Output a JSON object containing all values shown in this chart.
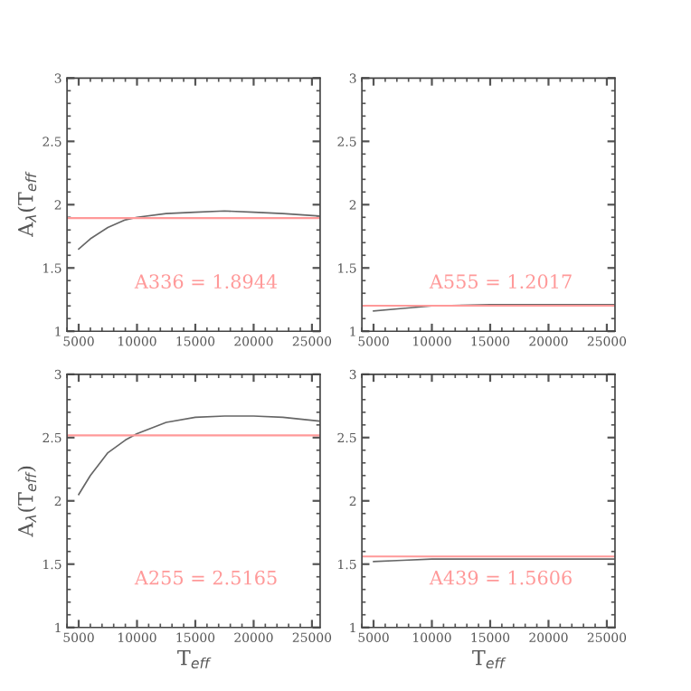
{
  "chart_data": [
    {
      "type": "line",
      "ylabel": "A$_{λ}$(T$_{eff}$",
      "xlim": [
        4000,
        25700
      ],
      "ylim": [
        1,
        3
      ],
      "xticks": [
        5000,
        10000,
        15000,
        20000,
        25000
      ],
      "yticks": [
        1,
        1.5,
        2,
        2.5,
        3
      ],
      "series": [
        {
          "color": "#666666",
          "x": [
            5000,
            6000,
            7500,
            9000,
            10000,
            12500,
            15000,
            17500,
            20000,
            22500,
            25600
          ],
          "values": [
            1.65,
            1.73,
            1.82,
            1.88,
            1.9,
            1.93,
            1.94,
            1.95,
            1.94,
            1.93,
            1.91
          ]
        }
      ],
      "ref_lines": [
        {
          "axis": "y",
          "value": 1.8944,
          "label": "A336 = 1.8944",
          "color": "#ff9999"
        }
      ]
    },
    {
      "type": "line",
      "xlim": [
        4000,
        25700
      ],
      "ylim": [
        1,
        3
      ],
      "xticks": [
        5000,
        10000,
        15000,
        20000,
        25000
      ],
      "yticks": [
        1,
        1.5,
        2,
        2.5,
        3
      ],
      "series": [
        {
          "color": "#666666",
          "x": [
            5000,
            7500,
            10000,
            15000,
            20000,
            25600
          ],
          "values": [
            1.16,
            1.18,
            1.2,
            1.21,
            1.21,
            1.21
          ]
        }
      ],
      "ref_lines": [
        {
          "axis": "y",
          "value": 1.2017,
          "label": "A555 = 1.2017",
          "color": "#ff9999"
        }
      ]
    },
    {
      "type": "line",
      "xlabel": "T$_{eff}$",
      "ylabel": "A$_{λ}$(T$_{eff}$)",
      "xlim": [
        4000,
        25700
      ],
      "ylim": [
        1,
        3
      ],
      "xticks": [
        5000,
        10000,
        15000,
        20000,
        25000
      ],
      "yticks": [
        1,
        1.5,
        2,
        2.5,
        3
      ],
      "series": [
        {
          "color": "#666666",
          "x": [
            5000,
            6000,
            7500,
            9000,
            10000,
            12500,
            15000,
            17500,
            20000,
            22500,
            25600
          ],
          "values": [
            2.05,
            2.2,
            2.38,
            2.48,
            2.53,
            2.62,
            2.66,
            2.67,
            2.67,
            2.66,
            2.63
          ]
        }
      ],
      "ref_lines": [
        {
          "axis": "y",
          "value": 2.5165,
          "label": "A255 = 2.5165",
          "color": "#ff9999"
        }
      ]
    },
    {
      "type": "line",
      "xlabel": "T$_{eff}$",
      "xlim": [
        4000,
        25700
      ],
      "ylim": [
        1,
        3
      ],
      "xticks": [
        5000,
        10000,
        15000,
        20000,
        25000
      ],
      "yticks": [
        1,
        1.5,
        2,
        2.5,
        3
      ],
      "series": [
        {
          "color": "#666666",
          "x": [
            5000,
            7500,
            10000,
            15000,
            20000,
            25600
          ],
          "values": [
            1.52,
            1.53,
            1.54,
            1.54,
            1.54,
            1.54
          ]
        }
      ],
      "ref_lines": [
        {
          "axis": "y",
          "value": 1.5606,
          "label": "A439 = 1.5606",
          "color": "#ff9999"
        }
      ]
    }
  ]
}
